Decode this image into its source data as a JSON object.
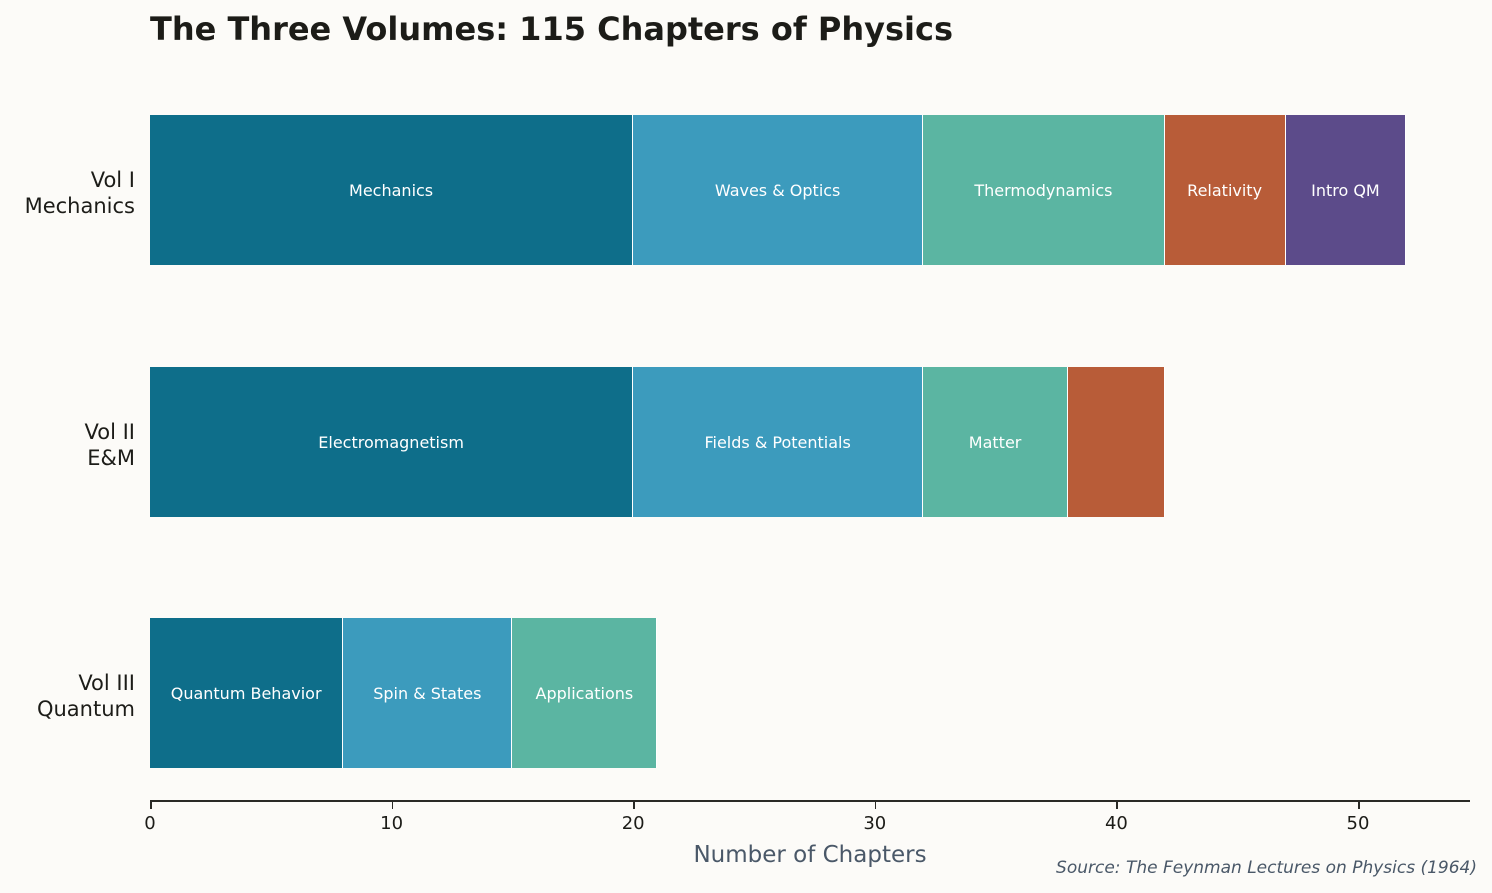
{
  "chart_data": {
    "type": "bar",
    "orientation": "horizontal",
    "stacked": true,
    "title": "The Three Volumes: 115 Chapters of Physics",
    "xlabel": "Number of Chapters",
    "ylabel": "",
    "xlim": [
      0,
      55
    ],
    "xticks": [
      0,
      10,
      20,
      30,
      40,
      50
    ],
    "grid": false,
    "legend": null,
    "annotation": "Source: The Feynman Lectures on Physics (1964)",
    "categories": [
      "Vol I\nMechanics",
      "Vol II\nE&M",
      "Vol III\nQuantum"
    ],
    "bars": [
      {
        "category": "Vol I Mechanics",
        "total": 52,
        "segments": [
          {
            "label": "Mechanics",
            "value": 20,
            "color": "#0e6e8a"
          },
          {
            "label": "Waves & Optics",
            "value": 12,
            "color": "#3c9bbd"
          },
          {
            "label": "Thermodynamics",
            "value": 10,
            "color": "#5bb5a2"
          },
          {
            "label": "Relativity",
            "value": 5,
            "color": "#b85c38"
          },
          {
            "label": "Intro QM",
            "value": 5,
            "color": "#5c4b8a"
          }
        ]
      },
      {
        "category": "Vol II E&M",
        "total": 42,
        "segments": [
          {
            "label": "Electromagnetism",
            "value": 20,
            "color": "#0e6e8a"
          },
          {
            "label": "Fields & Potentials",
            "value": 12,
            "color": "#3c9bbd"
          },
          {
            "label": "Matter",
            "value": 6,
            "color": "#5bb5a2"
          },
          {
            "label": "",
            "value": 4,
            "color": "#b85c38"
          }
        ]
      },
      {
        "category": "Vol III Quantum",
        "total": 21,
        "segments": [
          {
            "label": "Quantum Behavior",
            "value": 8,
            "color": "#0e6e8a"
          },
          {
            "label": "Spin & States",
            "value": 7,
            "color": "#3c9bbd"
          },
          {
            "label": "Applications",
            "value": 6,
            "color": "#5bb5a2"
          }
        ]
      }
    ]
  },
  "labels": {
    "title": "The Three Volumes: 115 Chapters of Physics",
    "xlabel": "Number of Chapters",
    "source": "Source: The Feynman Lectures on Physics (1964)",
    "rows": [
      {
        "line1": "Vol I",
        "line2": "Mechanics"
      },
      {
        "line1": "Vol II",
        "line2": "E&M"
      },
      {
        "line1": "Vol III",
        "line2": "Quantum"
      }
    ],
    "ticks": [
      "0",
      "10",
      "20",
      "30",
      "40",
      "50"
    ]
  }
}
